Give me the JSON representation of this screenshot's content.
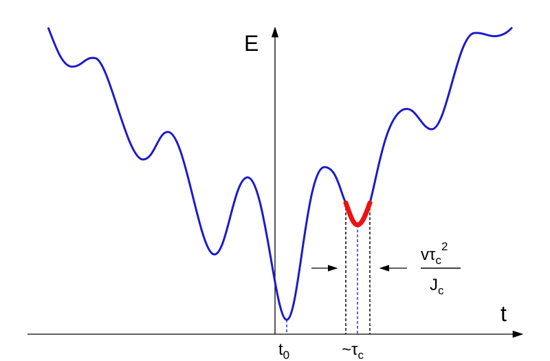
{
  "axis_labels": {
    "y": "E",
    "x": "t"
  },
  "markers": [
    {
      "main": "t",
      "sub": "0"
    },
    {
      "main": "~τ",
      "sub": "c"
    }
  ],
  "fraction": {
    "numerator": {
      "main": "vτ",
      "sub": "c",
      "sup": "2"
    },
    "denominator": {
      "main": "J",
      "sub": "c"
    }
  }
}
